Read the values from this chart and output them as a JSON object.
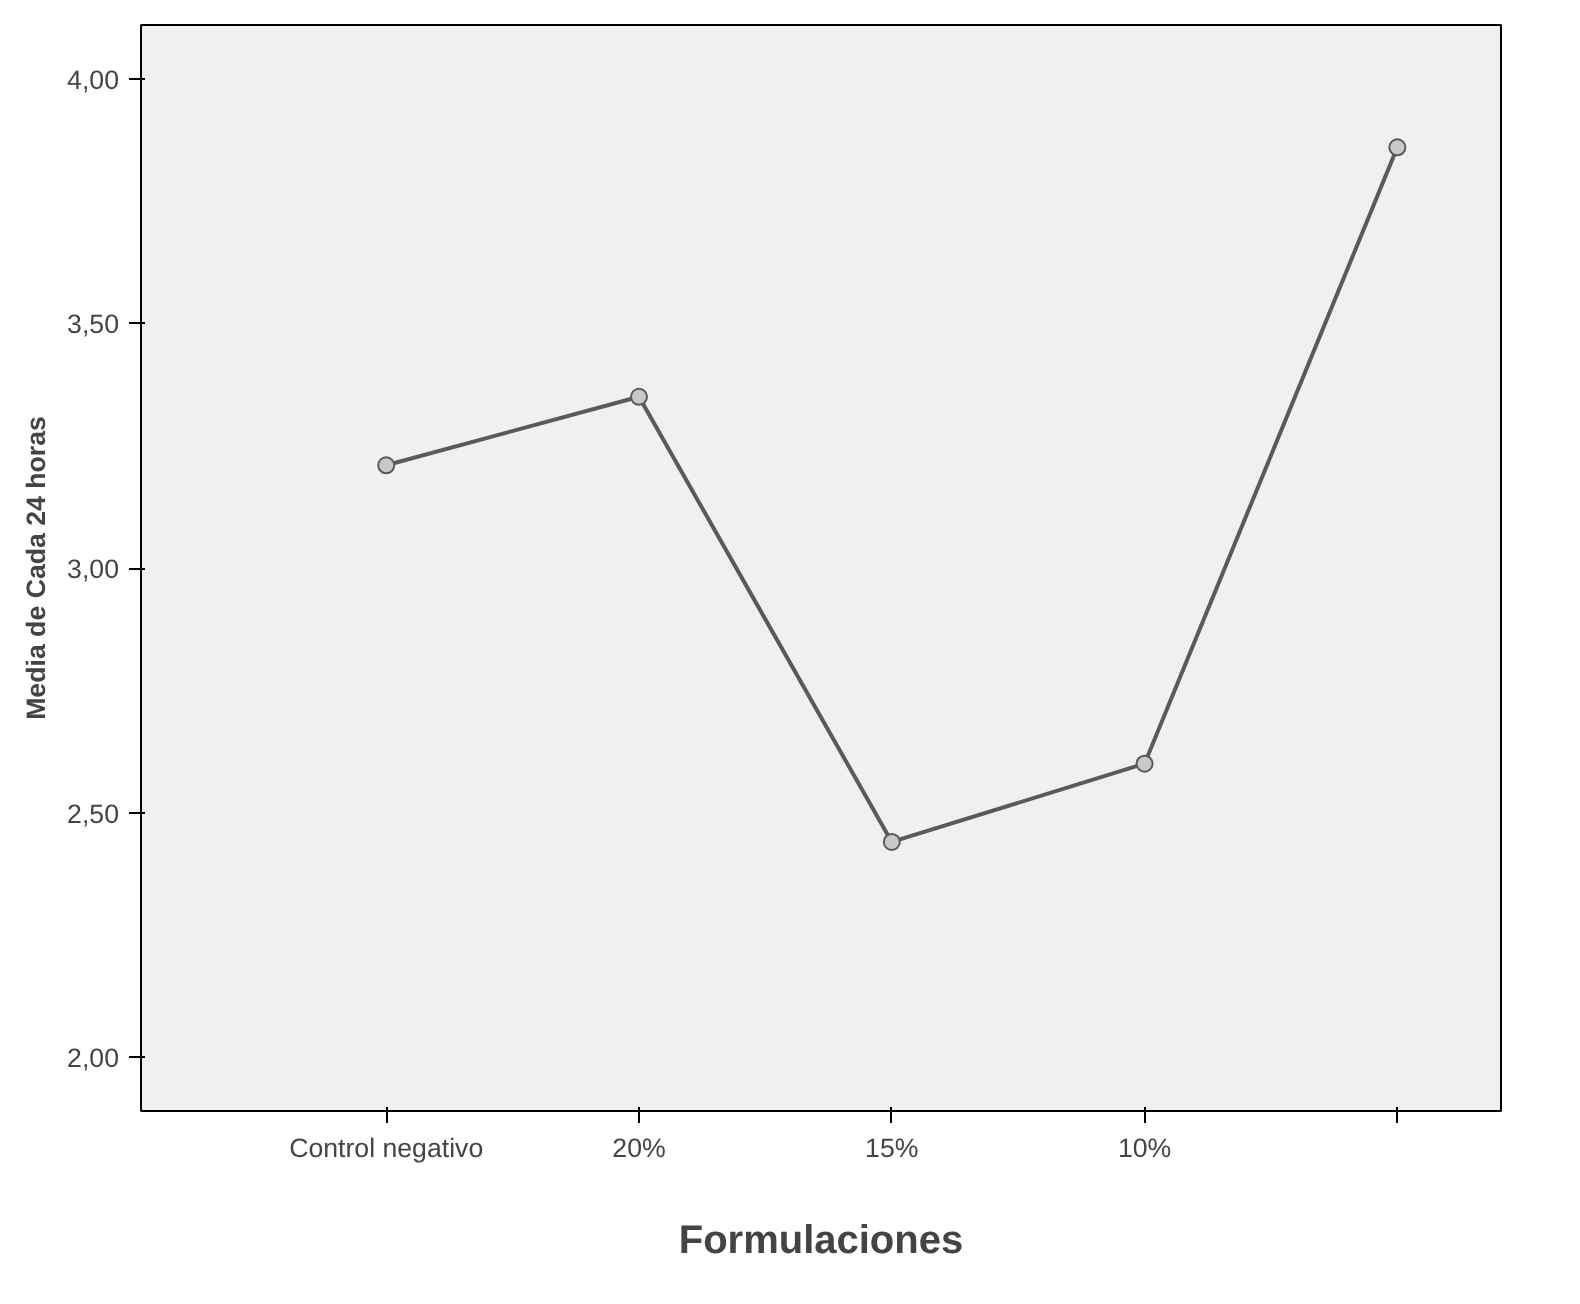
{
  "chart_data": {
    "type": "line",
    "xlabel": "Formulaciones",
    "ylabel": "Media de Cada 24 horas",
    "categories": [
      "Control negativo",
      "20%",
      "15%",
      "10%",
      null
    ],
    "series": [
      {
        "color": "#5a5a5a",
        "values": [
          3.21,
          3.35,
          2.44,
          2.6,
          3.86
        ]
      }
    ],
    "ylim": [
      1.89,
      4.11
    ],
    "yticks": [
      {
        "value": 2,
        "label": "2,00"
      },
      {
        "value": 2.5,
        "label": "2,50"
      },
      {
        "value": 3,
        "label": "3,00"
      },
      {
        "value": 3.5,
        "label": "3,50"
      },
      {
        "value": 4,
        "label": "4,00"
      }
    ],
    "marker": "circle",
    "line_style": "solid",
    "grid": false
  }
}
